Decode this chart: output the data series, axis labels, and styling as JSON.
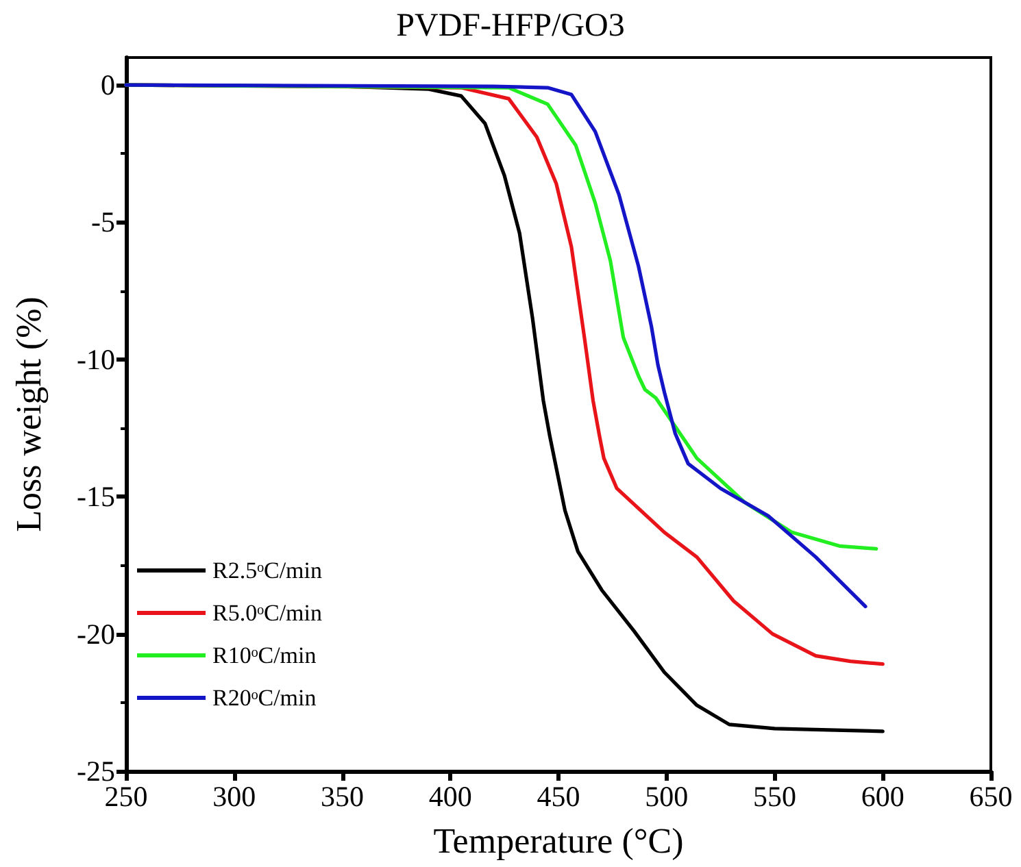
{
  "chart_data": {
    "type": "line",
    "title": "PVDF-HFP/GO3",
    "xlabel": "Temperature (°C)",
    "ylabel": "Loss weight (%)",
    "xlim": [
      250,
      650
    ],
    "xticks": [
      250,
      300,
      350,
      400,
      450,
      500,
      550,
      600,
      650
    ],
    "ylim": [
      -25,
      1
    ],
    "yticks": [
      -25,
      -20,
      -15,
      -10,
      -5,
      0
    ],
    "grid": false,
    "legend": "bottom left",
    "marker": "none",
    "line_style": "solid",
    "series": [
      {
        "name": "R2.5ᵒC/min",
        "color": "#000000",
        "x": [
          250,
          350,
          390,
          405,
          416,
          425,
          432,
          438,
          443,
          446,
          453,
          459,
          470,
          485,
          499,
          514,
          529,
          550,
          575,
          600
        ],
        "values": [
          0,
          -0.05,
          -0.15,
          -0.4,
          -1.4,
          -3.3,
          -5.4,
          -8.5,
          -11.5,
          -12.8,
          -15.5,
          -17,
          -18.4,
          -19.9,
          -21.4,
          -22.6,
          -23.3,
          -23.45,
          -23.5,
          -23.55
        ]
      },
      {
        "name": "R5.0ᵒC/min",
        "color": "#e8141a",
        "x": [
          250,
          405,
          427,
          440,
          449,
          456,
          462,
          466,
          469,
          471,
          477,
          499,
          514,
          531,
          549,
          569,
          585,
          600
        ],
        "values": [
          0,
          -0.1,
          -0.5,
          -1.9,
          -3.6,
          -5.9,
          -9.2,
          -11.5,
          -12.8,
          -13.6,
          -14.7,
          -16.3,
          -17.2,
          -18.8,
          -20,
          -20.8,
          -21,
          -21.1
        ]
      },
      {
        "name": "R10ᵒC/min",
        "color": "#22ee22",
        "x": [
          250,
          427,
          445,
          458,
          467,
          474,
          480,
          487,
          490,
          495,
          514,
          536,
          558,
          580,
          597
        ],
        "values": [
          0,
          -0.1,
          -0.7,
          -2.2,
          -4.3,
          -6.4,
          -9.2,
          -10.6,
          -11.1,
          -11.4,
          -13.6,
          -15.2,
          -16.3,
          -16.8,
          -16.9
        ]
      },
      {
        "name": "R20ᵒC/min",
        "color": "#1515c8",
        "x": [
          250,
          420,
          445,
          456,
          467,
          478,
          487,
          493,
          496,
          499,
          502,
          504,
          510,
          525,
          547,
          569,
          592
        ],
        "values": [
          0,
          -0.05,
          -0.1,
          -0.35,
          -1.7,
          -4,
          -6.6,
          -8.8,
          -10.2,
          -11.2,
          -12.1,
          -12.7,
          -13.8,
          -14.7,
          -15.7,
          -17.2,
          -19
        ]
      }
    ]
  }
}
